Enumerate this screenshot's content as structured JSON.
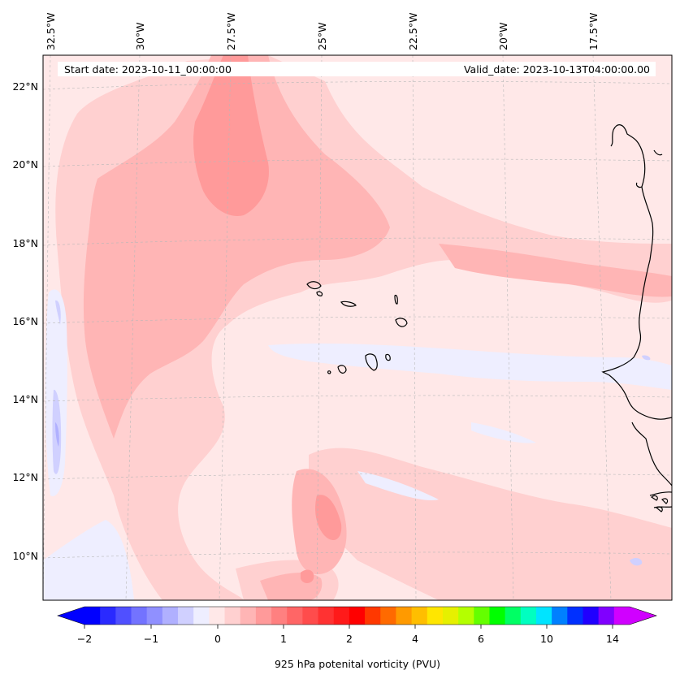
{
  "map": {
    "variable": "925 hPa potential vorticity",
    "start_date_text": "Start date: 2023-10-11_00:00:00",
    "valid_date_text": "Valid_date: 2023-10-13T04:00:00.00",
    "lon_labels": [
      "32.5°W",
      "30°W",
      "27.5°W",
      "25°W",
      "22.5°W",
      "20°W",
      "17.5°W"
    ],
    "lat_labels": [
      "22°N",
      "20°N",
      "18°N",
      "16°N",
      "14°N",
      "12°N",
      "10°N"
    ]
  },
  "colorbar": {
    "label": "925 hPa potenital vorticity (PVU)",
    "tick_labels": [
      "−2",
      "−1",
      "0",
      "1",
      "2",
      "4",
      "6",
      "10",
      "14"
    ],
    "colors": [
      "#0000ff",
      "#2a2aff",
      "#5050ff",
      "#7373ff",
      "#9090ff",
      "#b0b0ff",
      "#d0d0ff",
      "#eeeeff",
      "#ffe8e8",
      "#ffd0d0",
      "#ffb5b5",
      "#ff9a9a",
      "#ff8080",
      "#ff6666",
      "#ff4c4c",
      "#ff3232",
      "#ff1a1a",
      "#ff0000",
      "#ff3800",
      "#ff6a00",
      "#ff9a00",
      "#ffbe00",
      "#ffe600",
      "#e6f000",
      "#b4ff00",
      "#64ff00",
      "#00ff00",
      "#00ff64",
      "#00ffc0",
      "#00e4ff",
      "#0080ff",
      "#0030ff",
      "#2000ff",
      "#8000ff",
      "#d000ff"
    ],
    "under_color": "#0000ff",
    "over_color": "#d000ff"
  },
  "fill_colors": {
    "background": "#ffe8e8",
    "light": "#ffd0d0",
    "medium": "#ffb5b5",
    "dark": "#ff9a9a",
    "darker": "#ff8080",
    "negative": "#eeeeff",
    "negative2": "#d0d0ff",
    "negative3": "#b0b0ff"
  }
}
